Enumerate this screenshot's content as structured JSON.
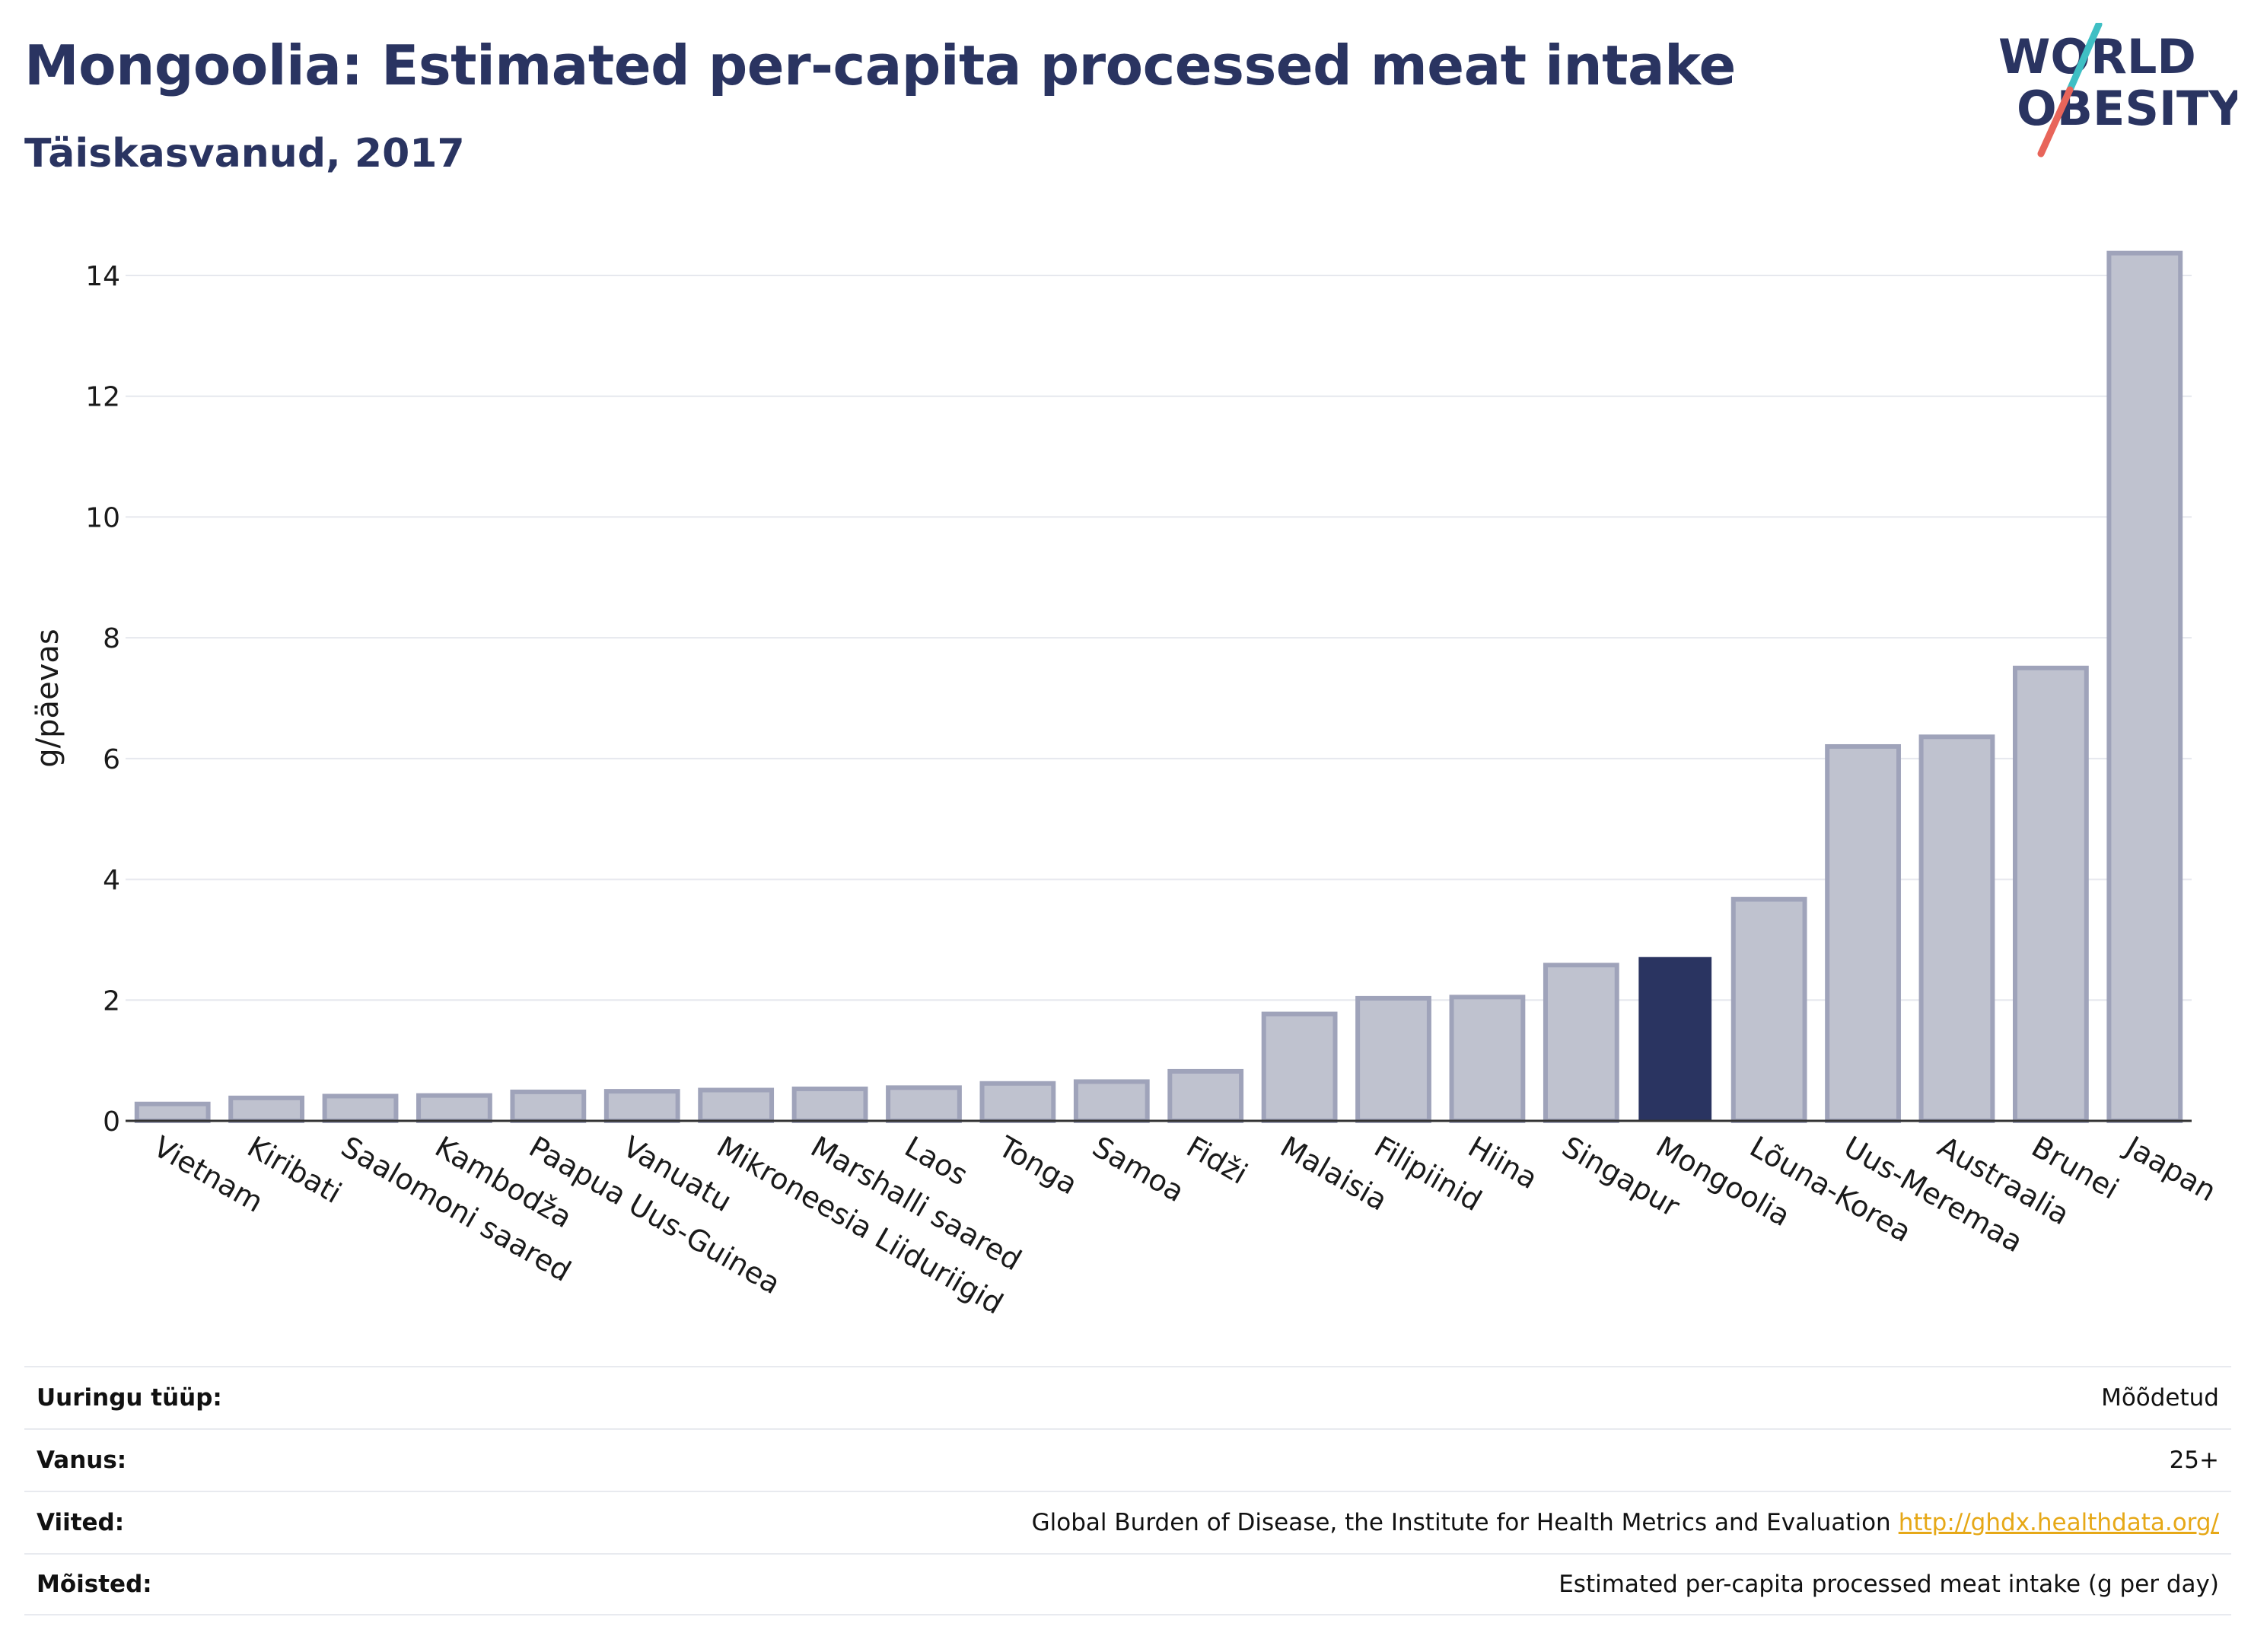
{
  "header": {
    "title": "Mongoolia: Estimated per-capita processed meat intake",
    "subtitle": "Täiskasvanud, 2017"
  },
  "logo": {
    "line1": "WORLD",
    "line2": "OBESITY",
    "colors": {
      "text": "#2a3461",
      "slash_top": "#3fbfc4",
      "slash_bottom": "#e8655a"
    }
  },
  "chart_data": {
    "type": "bar",
    "ylabel": "g/päevas",
    "ylim": [
      0,
      14.8
    ],
    "yticks": [
      0,
      2,
      4,
      6,
      8,
      10,
      12,
      14
    ],
    "grid": true,
    "highlight": "Mongoolia",
    "colors": {
      "bar": "#bfc2cf",
      "bar_edge": "#9fa3ba",
      "highlight": "#2a3461"
    },
    "categories": [
      "Vietnam",
      "Kiribati",
      "Saalomoni saared",
      "Kambodža",
      "Paapua Uus-Guinea",
      "Vanuatu",
      "Mikroneesia Liiduriigid",
      "Marshalli saared",
      "Laos",
      "Tonga",
      "Samoa",
      "Fidži",
      "Malaisia",
      "Filipiinid",
      "Hiina",
      "Singapur",
      "Mongoolia",
      "Lõuna-Korea",
      "Uus-Meremaa",
      "Austraalia",
      "Brunei",
      "Jaapan"
    ],
    "values": [
      0.28,
      0.38,
      0.41,
      0.42,
      0.48,
      0.49,
      0.51,
      0.53,
      0.55,
      0.62,
      0.65,
      0.82,
      1.77,
      2.03,
      2.05,
      2.58,
      2.7,
      3.67,
      6.2,
      6.36,
      7.5,
      14.37
    ]
  },
  "meta": [
    {
      "key": "Uuringu tüüp:",
      "value": "Mõõdetud",
      "link": ""
    },
    {
      "key": "Vanus:",
      "value": "25+",
      "link": ""
    },
    {
      "key": "Viited:",
      "value": "Global Burden of Disease, the Institute for Health Metrics and Evaluation",
      "link": "http://ghdx.healthdata.org/"
    },
    {
      "key": "Mõisted:",
      "value": "Estimated per-capita processed meat intake (g per day)",
      "link": ""
    }
  ]
}
